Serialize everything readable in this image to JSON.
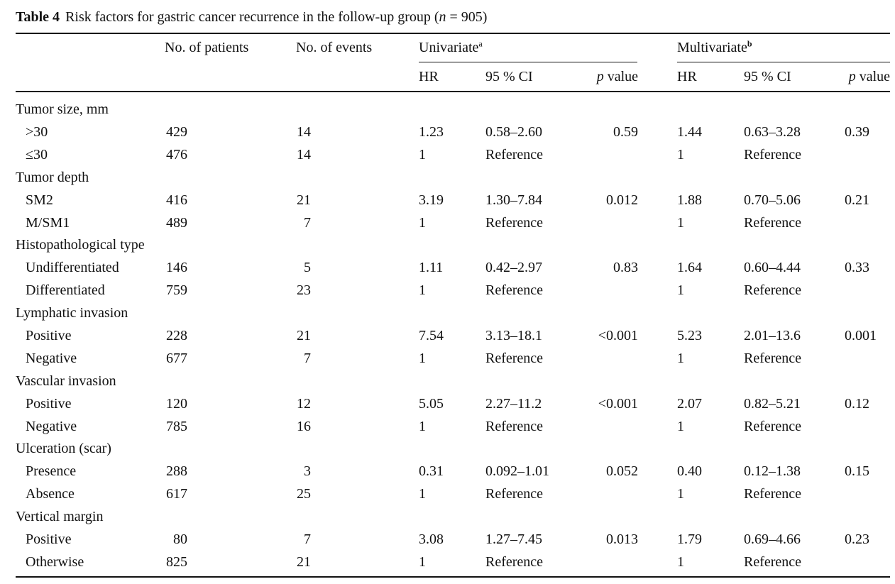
{
  "caption": {
    "label": "Table 4",
    "text": "Risk factors for gastric cancer recurrence in the follow-up group (",
    "n_var": "n",
    "n_rest": " = 905)"
  },
  "headers": {
    "patients": "No. of patients",
    "events": "No. of events",
    "univariate": "Univariate",
    "univariate_sup": "a",
    "multivariate": "Multivariate",
    "multivariate_sup": "b",
    "hr": "HR",
    "ci": "95 % CI",
    "p_italic": "p",
    "p_rest": " value"
  },
  "groups": [
    {
      "title": "Tumor size, mm",
      "rows": [
        {
          "label": ">30",
          "patients": "429",
          "events": "14",
          "u_hr": "1.23",
          "u_ci": "0.58–2.60",
          "u_p": "0.59",
          "m_hr": "1.44",
          "m_ci": "0.63–3.28",
          "m_p": "0.39"
        },
        {
          "label": "≤30",
          "patients": "476",
          "events": "14",
          "u_hr": "1",
          "u_ci": "Reference",
          "u_p": "",
          "m_hr": "1",
          "m_ci": "Reference",
          "m_p": ""
        }
      ]
    },
    {
      "title": "Tumor depth",
      "rows": [
        {
          "label": "SM2",
          "patients": "416",
          "events": "21",
          "u_hr": "3.19",
          "u_ci": "1.30–7.84",
          "u_p": "0.012",
          "m_hr": "1.88",
          "m_ci": "0.70–5.06",
          "m_p": "0.21"
        },
        {
          "label": "M/SM1",
          "patients": "489",
          "events": "7",
          "u_hr": "1",
          "u_ci": "Reference",
          "u_p": "",
          "m_hr": "1",
          "m_ci": "Reference",
          "m_p": ""
        }
      ]
    },
    {
      "title": "Histopathological type",
      "rows": [
        {
          "label": "Undifferentiated",
          "patients": "146",
          "events": "5",
          "u_hr": "1.11",
          "u_ci": "0.42–2.97",
          "u_p": "0.83",
          "m_hr": "1.64",
          "m_ci": "0.60–4.44",
          "m_p": "0.33"
        },
        {
          "label": "Differentiated",
          "patients": "759",
          "events": "23",
          "u_hr": "1",
          "u_ci": "Reference",
          "u_p": "",
          "m_hr": "1",
          "m_ci": "Reference",
          "m_p": ""
        }
      ]
    },
    {
      "title": "Lymphatic invasion",
      "rows": [
        {
          "label": "Positive",
          "patients": "228",
          "events": "21",
          "u_hr": "7.54",
          "u_ci": "3.13–18.1",
          "u_p": "<0.001",
          "m_hr": "5.23",
          "m_ci": "2.01–13.6",
          "m_p": "0.001"
        },
        {
          "label": "Negative",
          "patients": "677",
          "events": "7",
          "u_hr": "1",
          "u_ci": "Reference",
          "u_p": "",
          "m_hr": "1",
          "m_ci": "Reference",
          "m_p": ""
        }
      ]
    },
    {
      "title": "Vascular invasion",
      "rows": [
        {
          "label": "Positive",
          "patients": "120",
          "events": "12",
          "u_hr": "5.05",
          "u_ci": "2.27–11.2",
          "u_p": "<0.001",
          "m_hr": "2.07",
          "m_ci": "0.82–5.21",
          "m_p": "0.12"
        },
        {
          "label": "Negative",
          "patients": "785",
          "events": "16",
          "u_hr": "1",
          "u_ci": "Reference",
          "u_p": "",
          "m_hr": "1",
          "m_ci": "Reference",
          "m_p": ""
        }
      ]
    },
    {
      "title": "Ulceration (scar)",
      "rows": [
        {
          "label": "Presence",
          "patients": "288",
          "events": "3",
          "u_hr": "0.31",
          "u_ci": "0.092–1.01",
          "u_p": "0.052",
          "m_hr": "0.40",
          "m_ci": "0.12–1.38",
          "m_p": "0.15"
        },
        {
          "label": "Absence",
          "patients": "617",
          "events": "25",
          "u_hr": "1",
          "u_ci": "Reference",
          "u_p": "",
          "m_hr": "1",
          "m_ci": "Reference",
          "m_p": ""
        }
      ]
    },
    {
      "title": "Vertical margin",
      "rows": [
        {
          "label": "Positive",
          "patients": "80",
          "events": "7",
          "u_hr": "3.08",
          "u_ci": "1.27–7.45",
          "u_p": "0.013",
          "m_hr": "1.79",
          "m_ci": "0.69–4.66",
          "m_p": "0.23"
        },
        {
          "label": "Otherwise",
          "patients": "825",
          "events": "21",
          "u_hr": "1",
          "u_ci": "Reference",
          "u_p": "",
          "m_hr": "1",
          "m_ci": "Reference",
          "m_p": ""
        }
      ]
    }
  ]
}
